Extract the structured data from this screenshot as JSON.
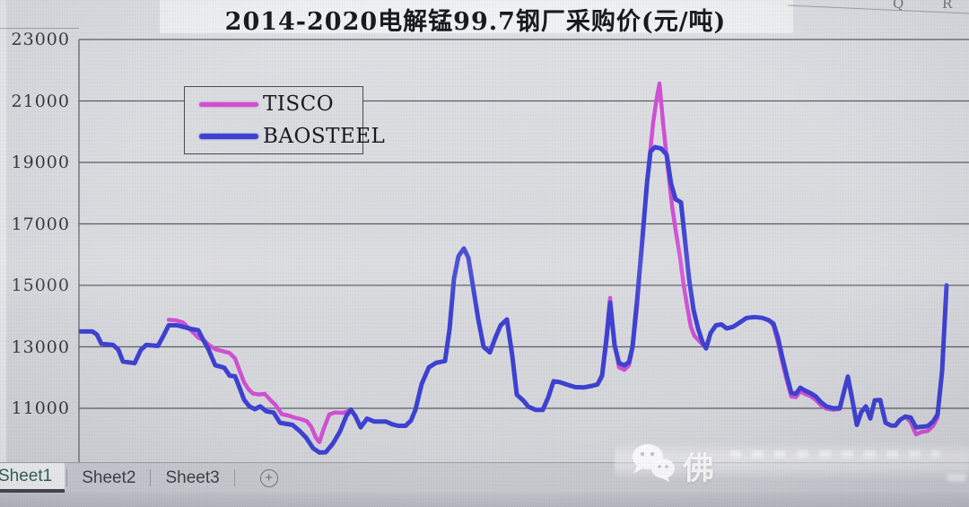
{
  "title": "2014-2020电解锰99.7钢厂采购价(元/吨)",
  "excel": {
    "column_headers": [
      "Q",
      "R"
    ],
    "sheet_tabs": [
      {
        "label": "Sheet1",
        "active": true
      },
      {
        "label": "Sheet2",
        "active": false
      },
      {
        "label": "Sheet3",
        "active": false
      }
    ],
    "add_sheet_label": "+"
  },
  "watermark": {
    "icon": "wechat-icon",
    "text": "佛"
  },
  "colors": {
    "tisco": "#d14fd4",
    "baosteel": "#3c40d2",
    "grid": "#5b5c63",
    "background": "#dcdde1",
    "active_tab_text": "#2e5f4e"
  },
  "chart_data": {
    "type": "line",
    "title": "2014-2020电解锰99.7钢厂采购价(元/吨)",
    "x_range": "2014-2020",
    "y_unit": "元/吨",
    "y_ticks": [
      23000,
      21000,
      19000,
      17000,
      15000,
      13000,
      11000
    ],
    "ylim": [
      9400,
      23000
    ],
    "grid": true,
    "legend_position": "top-left-box",
    "legend": [
      "TISCO",
      "BAOSTEEL"
    ],
    "series": [
      {
        "name": "TISCO",
        "color": "#d14fd4",
        "width": 4.5,
        "points": [
          [
            188,
            13880
          ],
          [
            196,
            13860
          ],
          [
            204,
            13790
          ],
          [
            213,
            13530
          ],
          [
            221,
            13300
          ],
          [
            228,
            13200
          ],
          [
            232,
            13080
          ],
          [
            240,
            12920
          ],
          [
            248,
            12860
          ],
          [
            256,
            12800
          ],
          [
            262,
            12620
          ],
          [
            267,
            12230
          ],
          [
            272,
            11850
          ],
          [
            277,
            11620
          ],
          [
            282,
            11480
          ],
          [
            289,
            11450
          ],
          [
            295,
            11470
          ],
          [
            301,
            11280
          ],
          [
            307,
            11110
          ],
          [
            314,
            10810
          ],
          [
            322,
            10760
          ],
          [
            328,
            10700
          ],
          [
            335,
            10650
          ],
          [
            342,
            10580
          ],
          [
            347,
            10400
          ],
          [
            352,
            10050
          ],
          [
            356,
            9900
          ],
          [
            361,
            10350
          ],
          [
            367,
            10800
          ],
          [
            373,
            10860
          ],
          [
            382,
            10850
          ],
          [
            388,
            10900
          ],
          [
            391,
            10960
          ],
          [
            396,
            10750
          ],
          [
            402,
            10380
          ],
          [
            409,
            10660
          ],
          [
            417,
            10570
          ],
          [
            430,
            10570
          ],
          [
            437,
            10480
          ],
          [
            444,
            10430
          ],
          [
            452,
            10430
          ],
          [
            458,
            10600
          ],
          [
            463,
            10950
          ],
          [
            470,
            11790
          ],
          [
            478,
            12330
          ],
          [
            486,
            12480
          ],
          [
            496,
            12540
          ],
          [
            501,
            13560
          ],
          [
            506,
            15220
          ],
          [
            511,
            15950
          ],
          [
            517,
            16200
          ],
          [
            522,
            15900
          ],
          [
            527,
            15000
          ],
          [
            533,
            13900
          ],
          [
            539,
            13000
          ],
          [
            546,
            12820
          ],
          [
            552,
            13290
          ],
          [
            558,
            13700
          ],
          [
            565,
            13890
          ],
          [
            571,
            12700
          ],
          [
            576,
            11440
          ],
          [
            583,
            11260
          ],
          [
            589,
            11050
          ],
          [
            597,
            10950
          ],
          [
            605,
            10950
          ],
          [
            611,
            11350
          ],
          [
            617,
            11880
          ],
          [
            624,
            11850
          ],
          [
            632,
            11770
          ],
          [
            641,
            11690
          ],
          [
            651,
            11680
          ],
          [
            660,
            11730
          ],
          [
            666,
            11780
          ],
          [
            671,
            12100
          ],
          [
            676,
            13400
          ],
          [
            680,
            14590
          ],
          [
            685,
            13100
          ],
          [
            690,
            12330
          ],
          [
            696,
            12250
          ],
          [
            701,
            12400
          ],
          [
            705,
            12950
          ],
          [
            710,
            14300
          ],
          [
            716,
            16600
          ],
          [
            722,
            18600
          ],
          [
            728,
            20300
          ],
          [
            732,
            21100
          ],
          [
            735,
            21570
          ],
          [
            739,
            20300
          ],
          [
            744,
            18900
          ],
          [
            749,
            17600
          ],
          [
            753,
            16800
          ],
          [
            758,
            15900
          ],
          [
            762,
            15000
          ],
          [
            766,
            14300
          ],
          [
            770,
            13650
          ],
          [
            774,
            13350
          ],
          [
            779,
            13200
          ],
          [
            783,
            13080
          ],
          [
            787,
            12950
          ],
          [
            792,
            13450
          ],
          [
            798,
            13700
          ],
          [
            804,
            13730
          ],
          [
            810,
            13600
          ],
          [
            817,
            13650
          ],
          [
            825,
            13800
          ],
          [
            832,
            13940
          ],
          [
            841,
            13970
          ],
          [
            850,
            13940
          ],
          [
            857,
            13860
          ],
          [
            862,
            13700
          ],
          [
            867,
            13150
          ],
          [
            872,
            12500
          ],
          [
            877,
            11900
          ],
          [
            882,
            11380
          ],
          [
            887,
            11360
          ],
          [
            892,
            11550
          ],
          [
            897,
            11470
          ],
          [
            903,
            11400
          ],
          [
            909,
            11280
          ],
          [
            915,
            11100
          ],
          [
            921,
            10990
          ],
          [
            929,
            10950
          ],
          [
            936,
            10980
          ],
          [
            941,
            11580
          ],
          [
            945,
            12030
          ],
          [
            950,
            11270
          ],
          [
            955,
            10460
          ],
          [
            960,
            10880
          ],
          [
            965,
            11060
          ],
          [
            970,
            10670
          ],
          [
            975,
            11260
          ],
          [
            981,
            11270
          ],
          [
            987,
            10530
          ],
          [
            993,
            10440
          ],
          [
            998,
            10440
          ],
          [
            1003,
            10620
          ],
          [
            1009,
            10730
          ],
          [
            1015,
            10550
          ],
          [
            1021,
            10150
          ],
          [
            1027,
            10230
          ],
          [
            1034,
            10260
          ],
          [
            1040,
            10430
          ],
          [
            1045,
            10700
          ]
        ]
      },
      {
        "name": "BAOSTEEL",
        "color": "#3c40d2",
        "width": 5,
        "points": [
          [
            90,
            13500
          ],
          [
            103,
            13500
          ],
          [
            108,
            13400
          ],
          [
            113,
            13100
          ],
          [
            126,
            13060
          ],
          [
            132,
            12900
          ],
          [
            137,
            12520
          ],
          [
            150,
            12470
          ],
          [
            157,
            12900
          ],
          [
            163,
            13060
          ],
          [
            176,
            13030
          ],
          [
            182,
            13350
          ],
          [
            188,
            13700
          ],
          [
            197,
            13700
          ],
          [
            204,
            13650
          ],
          [
            213,
            13580
          ],
          [
            221,
            13540
          ],
          [
            226,
            13250
          ],
          [
            232,
            12940
          ],
          [
            240,
            12400
          ],
          [
            250,
            12320
          ],
          [
            256,
            12060
          ],
          [
            262,
            12040
          ],
          [
            267,
            11670
          ],
          [
            272,
            11280
          ],
          [
            278,
            11060
          ],
          [
            284,
            10970
          ],
          [
            290,
            11060
          ],
          [
            297,
            10900
          ],
          [
            305,
            10860
          ],
          [
            312,
            10530
          ],
          [
            326,
            10460
          ],
          [
            334,
            10260
          ],
          [
            341,
            10050
          ],
          [
            349,
            9700
          ],
          [
            356,
            9560
          ],
          [
            363,
            9570
          ],
          [
            371,
            9850
          ],
          [
            379,
            10250
          ],
          [
            386,
            10750
          ],
          [
            391,
            10960
          ],
          [
            396,
            10750
          ],
          [
            402,
            10380
          ],
          [
            409,
            10660
          ],
          [
            417,
            10570
          ],
          [
            430,
            10570
          ],
          [
            437,
            10480
          ],
          [
            444,
            10430
          ],
          [
            452,
            10430
          ],
          [
            458,
            10600
          ],
          [
            463,
            10950
          ],
          [
            470,
            11790
          ],
          [
            478,
            12330
          ],
          [
            486,
            12480
          ],
          [
            496,
            12540
          ],
          [
            501,
            13560
          ],
          [
            506,
            15220
          ],
          [
            511,
            15950
          ],
          [
            517,
            16200
          ],
          [
            522,
            15900
          ],
          [
            527,
            15000
          ],
          [
            533,
            13900
          ],
          [
            539,
            13000
          ],
          [
            546,
            12820
          ],
          [
            552,
            13290
          ],
          [
            558,
            13700
          ],
          [
            565,
            13890
          ],
          [
            571,
            12700
          ],
          [
            576,
            11440
          ],
          [
            583,
            11260
          ],
          [
            589,
            11050
          ],
          [
            597,
            10950
          ],
          [
            605,
            10950
          ],
          [
            611,
            11350
          ],
          [
            617,
            11880
          ],
          [
            624,
            11850
          ],
          [
            632,
            11770
          ],
          [
            641,
            11690
          ],
          [
            651,
            11680
          ],
          [
            660,
            11730
          ],
          [
            666,
            11780
          ],
          [
            671,
            12050
          ],
          [
            676,
            13250
          ],
          [
            680,
            14440
          ],
          [
            685,
            13050
          ],
          [
            690,
            12470
          ],
          [
            696,
            12400
          ],
          [
            701,
            12500
          ],
          [
            705,
            13000
          ],
          [
            710,
            14500
          ],
          [
            716,
            16500
          ],
          [
            721,
            18300
          ],
          [
            725,
            19350
          ],
          [
            730,
            19500
          ],
          [
            737,
            19450
          ],
          [
            743,
            19250
          ],
          [
            748,
            18300
          ],
          [
            753,
            17800
          ],
          [
            759,
            17700
          ],
          [
            763,
            16600
          ],
          [
            768,
            15210
          ],
          [
            773,
            14200
          ],
          [
            778,
            13600
          ],
          [
            783,
            13150
          ],
          [
            787,
            12950
          ],
          [
            792,
            13450
          ],
          [
            798,
            13700
          ],
          [
            804,
            13730
          ],
          [
            810,
            13600
          ],
          [
            817,
            13650
          ],
          [
            825,
            13800
          ],
          [
            832,
            13940
          ],
          [
            841,
            13970
          ],
          [
            850,
            13940
          ],
          [
            857,
            13860
          ],
          [
            862,
            13760
          ],
          [
            867,
            13300
          ],
          [
            872,
            12650
          ],
          [
            877,
            12050
          ],
          [
            882,
            11500
          ],
          [
            887,
            11470
          ],
          [
            892,
            11670
          ],
          [
            897,
            11580
          ],
          [
            903,
            11500
          ],
          [
            909,
            11390
          ],
          [
            915,
            11200
          ],
          [
            921,
            11060
          ],
          [
            929,
            11000
          ],
          [
            936,
            11010
          ],
          [
            941,
            11580
          ],
          [
            945,
            12030
          ],
          [
            950,
            11270
          ],
          [
            955,
            10460
          ],
          [
            960,
            10880
          ],
          [
            965,
            11060
          ],
          [
            970,
            10670
          ],
          [
            975,
            11260
          ],
          [
            981,
            11270
          ],
          [
            987,
            10530
          ],
          [
            993,
            10440
          ],
          [
            998,
            10440
          ],
          [
            1003,
            10620
          ],
          [
            1009,
            10730
          ],
          [
            1015,
            10700
          ],
          [
            1021,
            10380
          ],
          [
            1027,
            10400
          ],
          [
            1034,
            10420
          ],
          [
            1040,
            10570
          ],
          [
            1045,
            10800
          ],
          [
            1050,
            12200
          ],
          [
            1055,
            15000
          ]
        ]
      }
    ]
  }
}
